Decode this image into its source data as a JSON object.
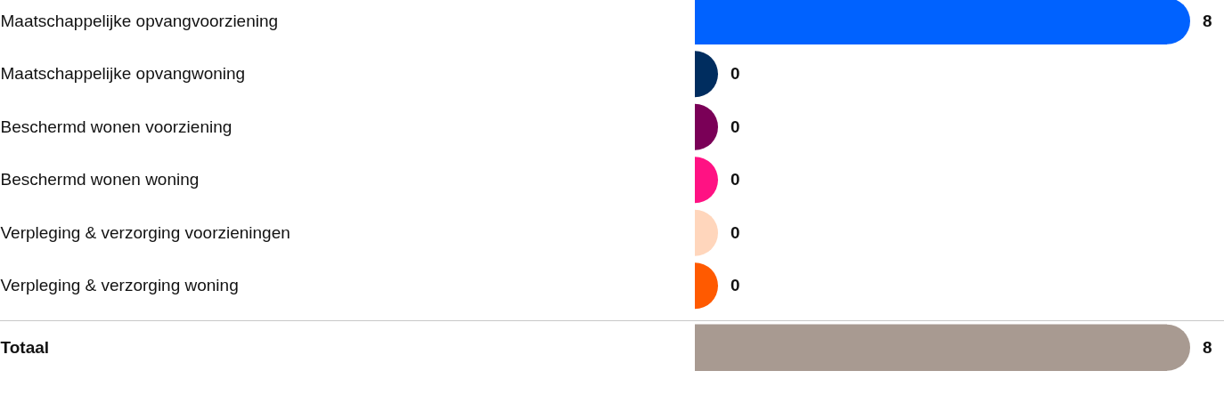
{
  "chart_data": [
    {
      "type": "bar",
      "orientation": "horizontal",
      "categories": [
        "Maatschappelijke opvangvoorziening",
        "Maatschappelijke opvangwoning",
        "Beschermd wonen voorziening",
        "Beschermd wonen woning",
        "Verpleging & verzorging voorzieningen",
        "Verpleging & verzorging woning"
      ],
      "values": [
        8,
        0,
        0,
        0,
        0,
        0
      ],
      "colors": [
        "#0062ff",
        "#002d5f",
        "#7a0057",
        "#ff1283",
        "#ffd6bc",
        "#ff5a00"
      ],
      "data_labels": true
    },
    {
      "type": "bar",
      "orientation": "horizontal",
      "categories": [
        "Totaal"
      ],
      "values": [
        8
      ],
      "colors": [
        "#a89a91"
      ],
      "data_labels": true
    }
  ]
}
